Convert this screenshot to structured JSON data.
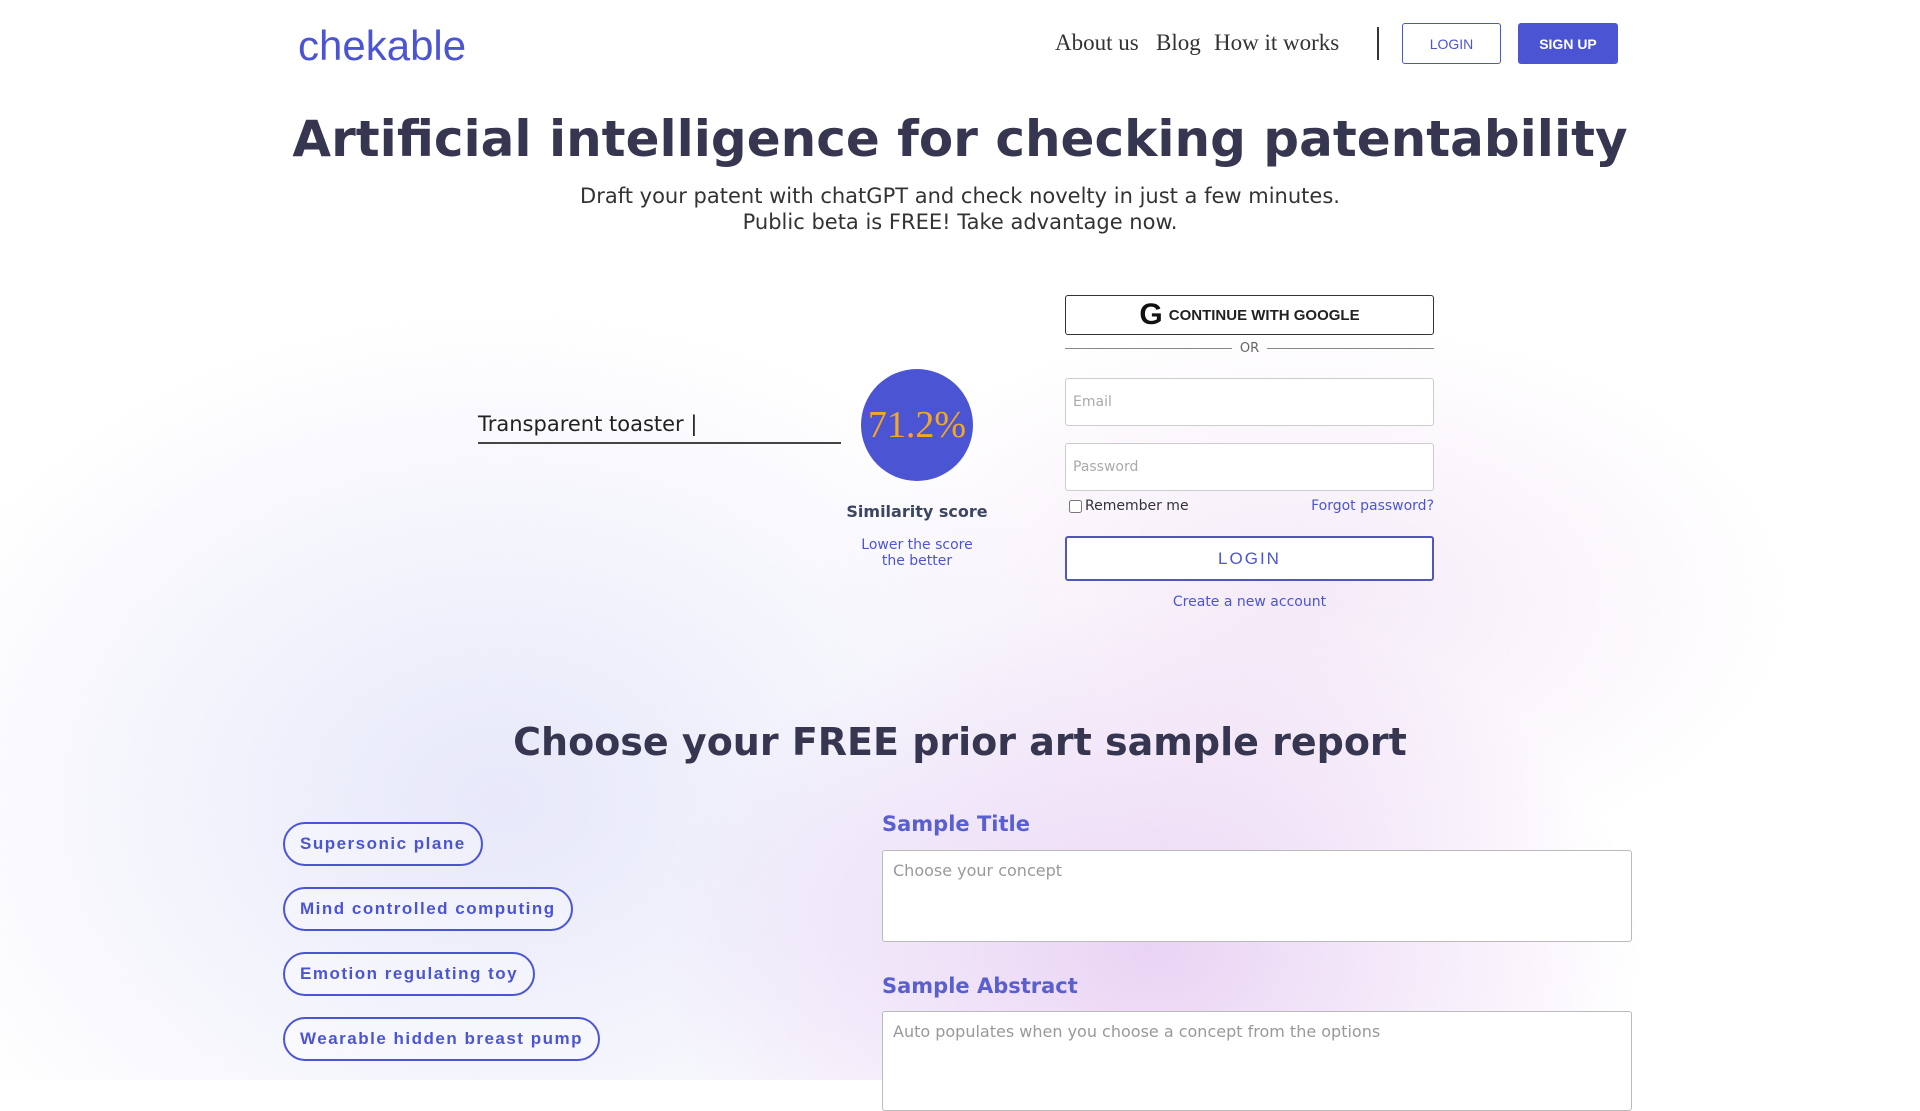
{
  "header": {
    "logo": "chekable",
    "nav": [
      "About us",
      "Blog",
      "How it works"
    ],
    "login": "LOGIN",
    "signup": "SIGN UP"
  },
  "hero": {
    "title": "Artificial intelligence for checking patentability",
    "subtitle_1": "Draft your patent with chatGPT and check novelty in just a few minutes.",
    "subtitle_2": "Public beta is FREE! Take advantage now."
  },
  "demo": {
    "concept": "Transparent toaster |",
    "score": "71.2%",
    "score_label": "Similarity score",
    "note_1": "Lower the score",
    "note_2": "the better"
  },
  "auth": {
    "google": "CONTINUE WITH GOOGLE",
    "or": "OR",
    "email_placeholder": "Email",
    "password_placeholder": "Password",
    "remember": "Remember me",
    "forgot": "Forgot password?",
    "login": "LOGIN",
    "create": "Create a new account"
  },
  "samples": {
    "heading": "Choose your FREE prior art sample report",
    "options": [
      "Supersonic plane",
      "Mind controlled computing",
      "Emotion regulating toy",
      "Wearable hidden breast pump"
    ],
    "title_label": "Sample Title",
    "title_placeholder": "Choose your concept",
    "abstract_label": "Sample Abstract",
    "abstract_placeholder": "Auto populates when you choose a concept from the options"
  },
  "colors": {
    "brand": "#4b55d4",
    "score_text": "#f5a623"
  }
}
